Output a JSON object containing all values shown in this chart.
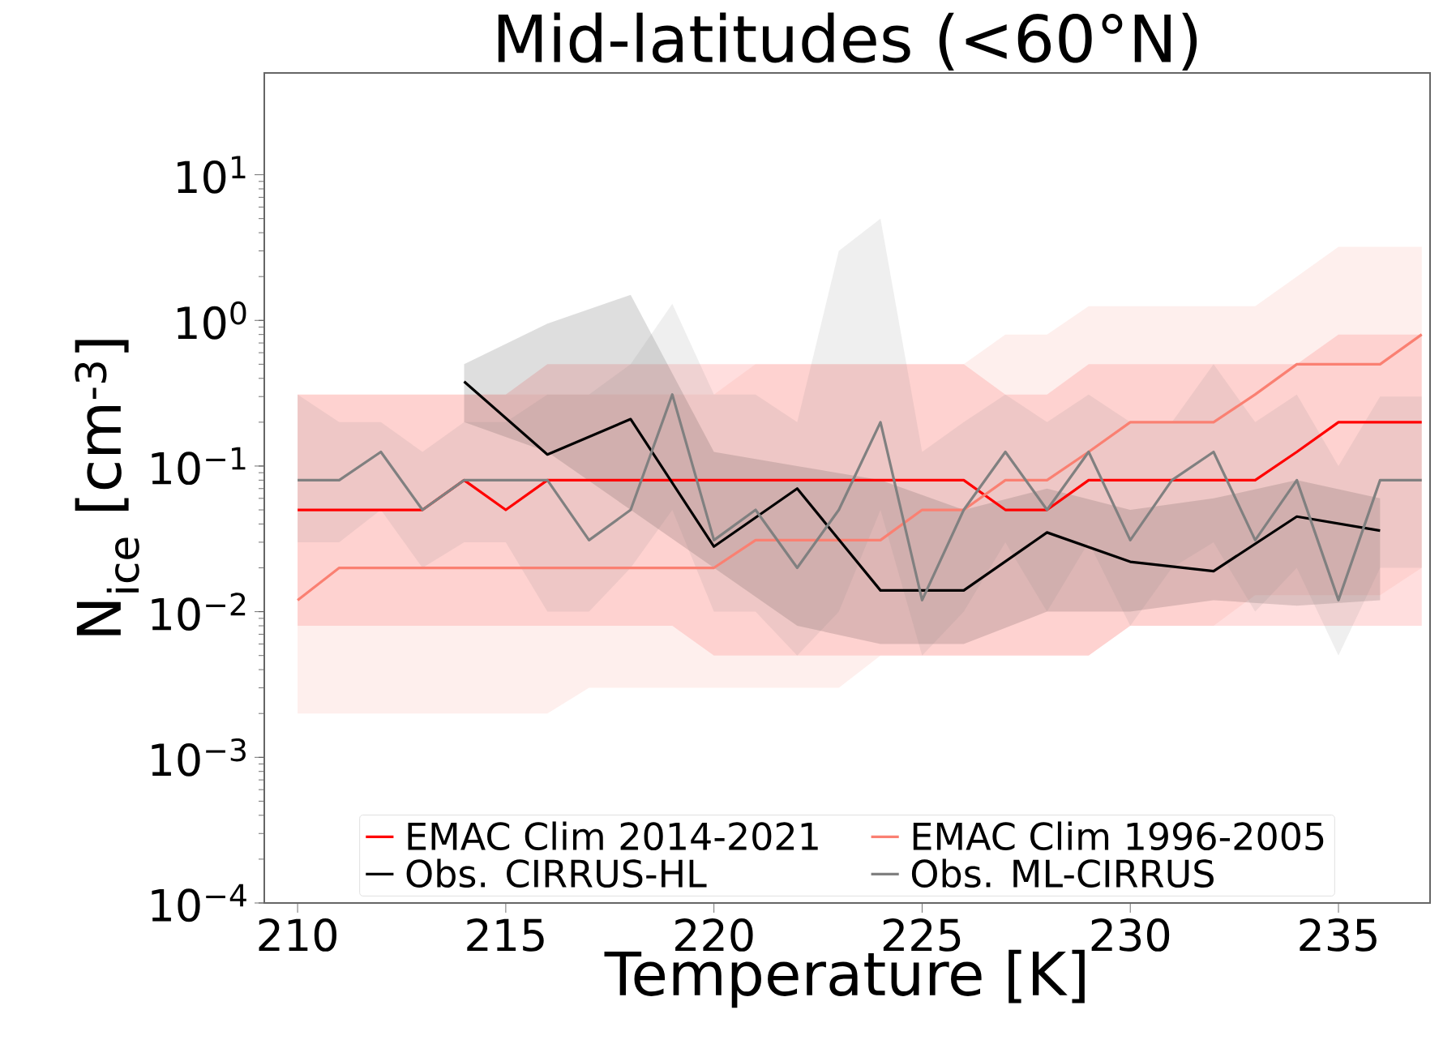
{
  "chart_data": {
    "type": "line",
    "title": "Mid-latitudes (<60°N)",
    "xlabel": "Temperature [K]",
    "ylabel": "N$_{ice}$ [cm$^{-3}$]",
    "log": "y",
    "xlim": [
      209.2,
      237.2
    ],
    "ylim": [
      0.0001,
      50
    ],
    "xticks": [
      210,
      215,
      220,
      225,
      230,
      235
    ],
    "yticks": [
      {
        "value": 0.0001,
        "label": "10$^{−4}$"
      },
      {
        "value": 0.001,
        "label": "10$^{−3}$"
      },
      {
        "value": 0.01,
        "label": "10$^{−2}$"
      },
      {
        "value": 0.1,
        "label": "10$^{−1}$"
      },
      {
        "value": 1,
        "label": "10$^{0}$"
      },
      {
        "value": 10,
        "label": "10$^{1}$"
      }
    ],
    "legend": "bottom",
    "marker": "none",
    "line_style": "solid",
    "grid": false,
    "x": [
      210,
      211,
      212,
      213,
      214,
      215,
      216,
      217,
      218,
      219,
      220,
      221,
      222,
      223,
      224,
      225,
      226,
      227,
      228,
      229,
      230,
      231,
      232,
      233,
      234,
      235,
      236,
      237
    ],
    "series": [
      {
        "name": "EMAC Clim 2014-2021",
        "color": "#ff0000",
        "values": [
          0.05,
          0.05,
          0.05,
          0.05,
          0.08,
          0.05,
          0.08,
          0.08,
          0.08,
          0.08,
          0.08,
          0.08,
          0.08,
          0.08,
          0.08,
          0.08,
          0.08,
          0.05,
          0.05,
          0.08,
          0.08,
          0.08,
          0.08,
          0.08,
          0.125,
          0.2,
          0.2,
          0.2
        ],
        "lower": [
          0.008,
          0.008,
          0.008,
          0.008,
          0.008,
          0.008,
          0.008,
          0.008,
          0.008,
          0.008,
          0.005,
          0.005,
          0.005,
          0.005,
          0.005,
          0.005,
          0.005,
          0.005,
          0.005,
          0.005,
          0.008,
          0.008,
          0.008,
          0.008,
          0.008,
          0.008,
          0.008,
          0.008
        ],
        "upper": [
          0.31,
          0.31,
          0.31,
          0.31,
          0.31,
          0.31,
          0.5,
          0.5,
          0.5,
          0.5,
          0.5,
          0.5,
          0.5,
          0.5,
          0.5,
          0.5,
          0.5,
          0.31,
          0.31,
          0.5,
          0.5,
          0.5,
          0.5,
          0.5,
          0.5,
          0.8,
          0.8,
          0.8
        ]
      },
      {
        "name": "EMAC Clim 1996-2005",
        "color": "#fa8072",
        "values": [
          0.012,
          0.02,
          0.02,
          0.02,
          0.02,
          0.02,
          0.02,
          0.02,
          0.02,
          0.02,
          0.02,
          0.031,
          0.031,
          0.031,
          0.031,
          0.05,
          0.05,
          0.08,
          0.08,
          0.125,
          0.2,
          0.2,
          0.2,
          0.31,
          0.5,
          0.5,
          0.5,
          0.8
        ],
        "lower": [
          0.002,
          0.002,
          0.002,
          0.002,
          0.002,
          0.002,
          0.002,
          0.003,
          0.003,
          0.003,
          0.003,
          0.003,
          0.003,
          0.003,
          0.005,
          0.005,
          0.005,
          0.005,
          0.005,
          0.005,
          0.008,
          0.008,
          0.008,
          0.013,
          0.013,
          0.013,
          0.013,
          0.02
        ],
        "upper": [
          0.31,
          0.31,
          0.31,
          0.31,
          0.31,
          0.31,
          0.31,
          0.31,
          0.31,
          0.31,
          0.31,
          0.5,
          0.5,
          0.5,
          0.5,
          0.5,
          0.5,
          0.8,
          0.8,
          1.25,
          1.25,
          1.25,
          1.25,
          1.25,
          2,
          3.2,
          3.2,
          3.2
        ]
      },
      {
        "name": "Obs. CIRRUS-HL",
        "color": "#000000",
        "x": [
          214,
          216,
          218,
          220,
          222,
          224,
          226,
          228,
          230,
          232,
          234,
          236
        ],
        "values": [
          0.38,
          0.12,
          0.21,
          0.028,
          0.07,
          0.014,
          0.014,
          0.035,
          0.022,
          0.019,
          0.045,
          0.036
        ],
        "lower": [
          0.2,
          0.125,
          0.05,
          0.02,
          0.008,
          0.006,
          0.006,
          0.01,
          0.01,
          0.012,
          0.011,
          0.012
        ],
        "upper": [
          0.5,
          0.95,
          1.5,
          0.125,
          0.1,
          0.08,
          0.05,
          0.07,
          0.05,
          0.06,
          0.08,
          0.06
        ]
      },
      {
        "name": "Obs. ML-CIRRUS",
        "color": "#808080",
        "values": [
          0.08,
          0.08,
          0.125,
          0.05,
          0.08,
          0.08,
          0.08,
          0.031,
          0.05,
          0.31,
          0.031,
          0.05,
          0.02,
          0.05,
          0.2,
          0.012,
          0.05,
          0.125,
          0.05,
          0.125,
          0.031,
          0.08,
          0.125,
          0.031,
          0.08,
          0.012,
          0.08,
          0.08
        ],
        "lower": [
          0.03,
          0.03,
          0.05,
          0.02,
          0.03,
          0.03,
          0.01,
          0.01,
          0.02,
          0.05,
          0.01,
          0.01,
          0.005,
          0.01,
          0.05,
          0.005,
          0.01,
          0.03,
          0.01,
          0.03,
          0.008,
          0.02,
          0.03,
          0.01,
          0.02,
          0.005,
          0.02,
          0.02
        ],
        "upper": [
          0.31,
          0.2,
          0.2,
          0.125,
          0.2,
          0.2,
          0.31,
          0.31,
          0.5,
          1.3,
          0.31,
          0.31,
          0.2,
          3,
          5,
          0.125,
          0.2,
          0.31,
          0.2,
          0.31,
          0.2,
          0.2,
          0.5,
          0.2,
          0.31,
          0.1,
          0.3,
          0.3
        ]
      }
    ]
  }
}
